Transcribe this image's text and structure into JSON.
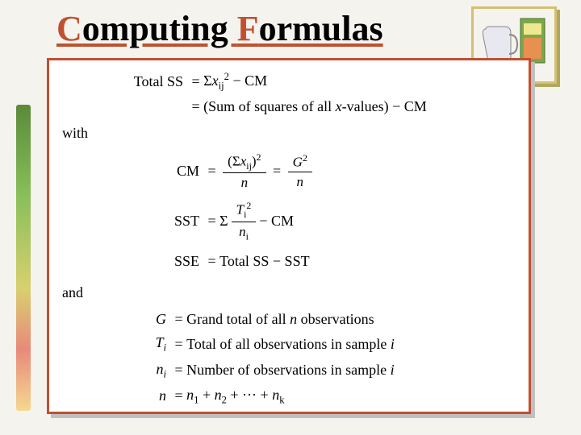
{
  "title_html": "<span class='c'>C</span>omputing <span class='c'>F</span>ormulas",
  "formulas": {
    "line1_lhs": "Total SS",
    "line1_rhs": "Σ<span class='it'>x</span><span class='sub'>ij</span><span class='sup'>2</span> − CM",
    "line2_rhs": "(Sum of squares of all <span class='it'>x</span>-values) − CM",
    "with": "with",
    "cm_lhs": "CM",
    "cm_frac1_num": "(Σ<span class='it'>x</span><span class='sub'>ij</span>)<span class='sup'>2</span>",
    "cm_frac1_den": "<span class='it'>n</span>",
    "cm_frac2_num": "<span class='it'>G</span><span class='sup'>2</span>",
    "cm_frac2_den": "<span class='it'>n</span>",
    "sst_lhs": "SST",
    "sst_frac_num": "<span class='it'>T</span><span class='sub'>i</span><span class='sup'>2</span>",
    "sst_frac_den": "<span class='it'>n</span><span class='sub'>i</span>",
    "sst_tail": " − CM",
    "sse_lhs": "SSE",
    "sse_rhs": "Total SS − SST",
    "and": "and",
    "def_g_lhs": "<span class='it'>G</span>",
    "def_g_rhs": "Grand total of all <span class='it'>n</span> observations",
    "def_t_lhs": "<span class='it'>T<span class='sub'>i</span></span>",
    "def_t_rhs": "Total of all observations in sample <span class='it'>i</span>",
    "def_ni_lhs": "<span class='it'>n<span class='sub'>i</span></span>",
    "def_ni_rhs": "Number of observations in sample <span class='it'>i</span>",
    "def_n_lhs": "<span class='it'>n</span>",
    "def_n_rhs": "<span class='it'>n</span><span class='sub'>1</span> + <span class='it'>n</span><span class='sub'>2</span> + ··· + <span class='it'>n</span><span class='sub'>k</span>"
  },
  "colors": {
    "title_accent": "#c05030",
    "frame_border": "#c05030",
    "frame_shadow": "#c0c0c0",
    "background": "#f5f3ee",
    "icon_border": "#d4c070"
  }
}
